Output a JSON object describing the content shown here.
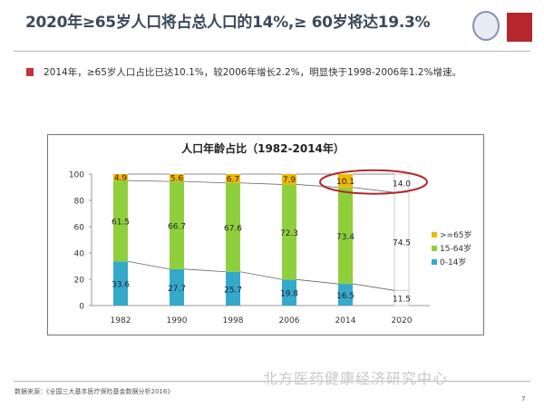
{
  "header": {
    "title": "2020年≥65岁人口将占总人口的14%,≥ 60岁将达19.3%",
    "bullet_text": "2014年，≥65岁人口占比已达10.1%，较2006年增长2.2%，明显快于1998-2006年1.2%增速。"
  },
  "footer": {
    "source": "数据来源：《全国三大基本医疗保险基金数据分析2016》",
    "watermark": "北方医药健康经济研究中心",
    "page_number": "7"
  },
  "colors": {
    "age65": "#f2b705",
    "age15_64": "#8fcf3c",
    "age0_14": "#35a9c9",
    "highlight": "#b02a2e"
  },
  "chart_data": {
    "type": "bar",
    "stacked": true,
    "title": "人口年龄占比（1982-2014年）",
    "categories": [
      "1982",
      "1990",
      "1998",
      "2006",
      "2014",
      "2020"
    ],
    "series": [
      {
        "name": "0-14岁",
        "values": [
          33.6,
          27.7,
          25.7,
          19.8,
          16.5,
          11.5
        ]
      },
      {
        "name": "15-64岁",
        "values": [
          61.5,
          66.7,
          67.6,
          72.3,
          73.4,
          74.5
        ]
      },
      {
        "name": ">=65岁",
        "values": [
          4.9,
          5.6,
          6.7,
          7.9,
          10.1,
          14.0
        ]
      }
    ],
    "projected_categories": [
      "2020"
    ],
    "highlighted": [
      "2014 >=65岁",
      "2020 >=65岁"
    ],
    "ylim": [
      0,
      100
    ],
    "yticks": [
      "0",
      "20",
      "40",
      "60",
      "80",
      "100"
    ],
    "legend_order": [
      ">=65岁",
      "15-64岁",
      "0-14岁"
    ],
    "legend_position": "right",
    "xlabel": "",
    "ylabel": ""
  }
}
